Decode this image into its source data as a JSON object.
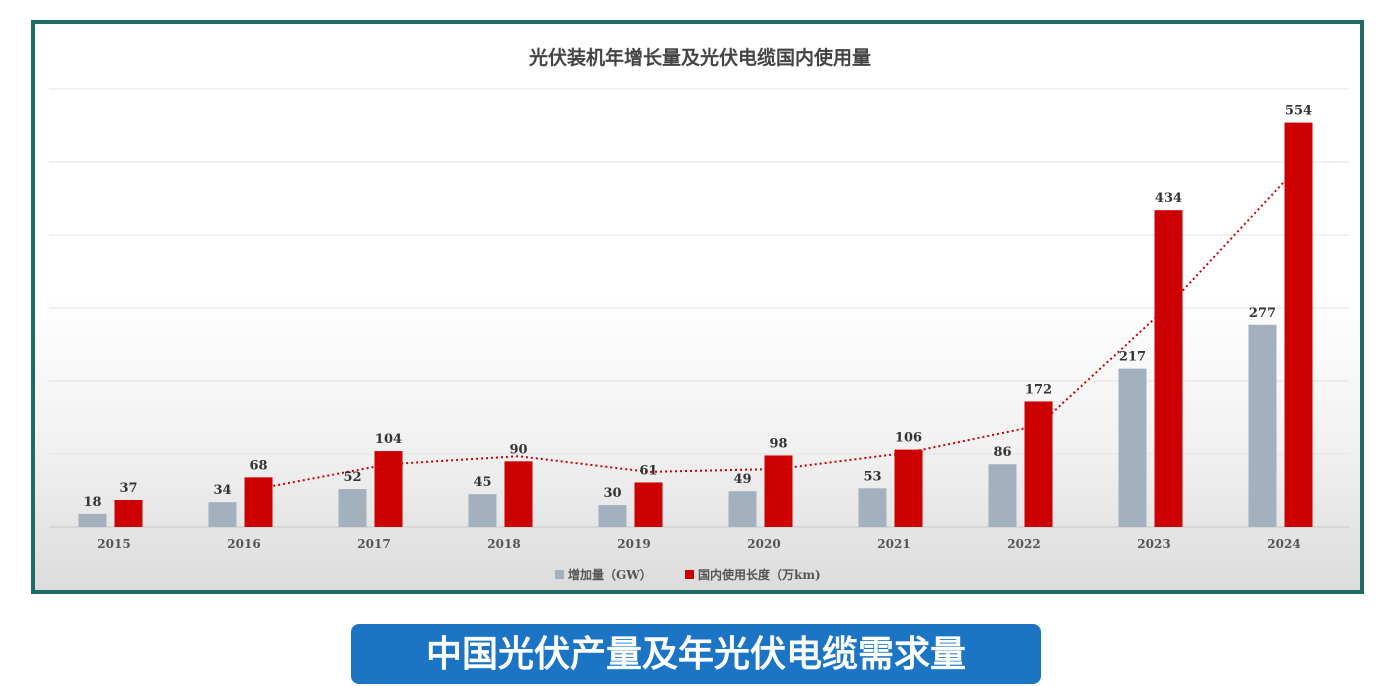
{
  "caption": "中国光伏产量及年光伏电缆需求量",
  "chart_data": {
    "type": "bar",
    "title": "光伏装机年增长量及光伏电缆国内使用量",
    "categories": [
      "2015",
      "2016",
      "2017",
      "2018",
      "2019",
      "2020",
      "2021",
      "2022",
      "2023",
      "2024"
    ],
    "series": [
      {
        "name": "增加量（GW）",
        "color": "#a3b1bf",
        "values": [
          18,
          34,
          52,
          45,
          30,
          49,
          53,
          86,
          217,
          277
        ]
      },
      {
        "name": "国内使用长度（万km)",
        "color": "#cc0000",
        "values": [
          37,
          68,
          104,
          90,
          61,
          98,
          106,
          172,
          434,
          554
        ]
      }
    ],
    "trendline": {
      "series": "国内使用长度（万km)",
      "style": "dotted",
      "color": "#cc0000"
    },
    "ylim": [
      0,
      600
    ],
    "grid": true,
    "legend": "bottom",
    "xlabel": "",
    "ylabel": ""
  }
}
